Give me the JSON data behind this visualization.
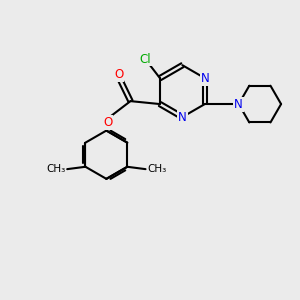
{
  "background_color": "#EBEBEB",
  "bond_color": "#000000",
  "bond_width": 1.5,
  "atom_colors": {
    "N": "#0000EE",
    "O": "#FF0000",
    "Cl": "#00AA00",
    "C": "#000000"
  },
  "font_size": 8.5,
  "figsize": [
    3.0,
    3.0
  ],
  "dpi": 100
}
